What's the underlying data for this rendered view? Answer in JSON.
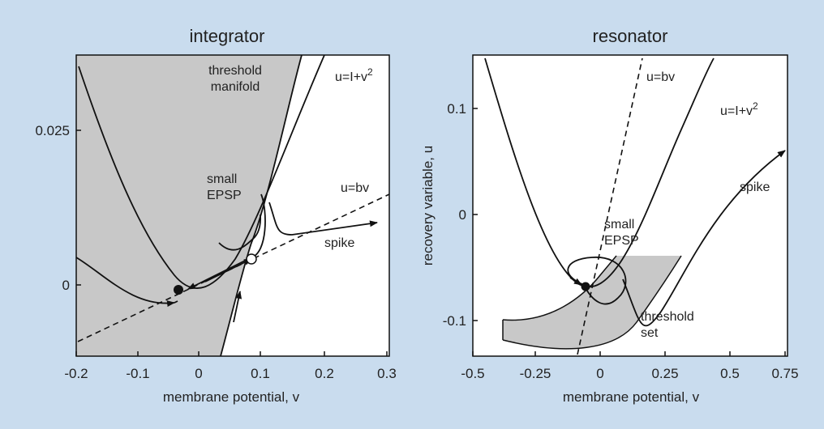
{
  "colors": {
    "background": "#c9dcee",
    "panel": "#ffffff",
    "shade": "#c8c8c8",
    "ink": "#111111"
  },
  "left_panel": {
    "title": "integrator",
    "xlabel": "membrane potential, v",
    "x_ticks": [
      "-0.2",
      "-0.1",
      "0",
      "0.1",
      "0.2",
      "0.3"
    ],
    "y_ticks": [
      "0.025",
      "0"
    ],
    "annotations": {
      "threshold_manifold_line1": "threshold",
      "threshold_manifold_line2": "manifold",
      "parabola": "u=I+v",
      "parabola_exp": "2",
      "small_epsp_line1": "small",
      "small_epsp_line2": "EPSP",
      "line": "u=bv",
      "spike": "spike"
    }
  },
  "right_panel": {
    "title": "resonator",
    "xlabel": "membrane potential, v",
    "ylabel": "recovery variable, u",
    "x_ticks": [
      "-0.5",
      "-0.25",
      "0",
      "0.25",
      "0.5",
      "0.75"
    ],
    "y_ticks": [
      "0.1",
      "0",
      "-0.1"
    ],
    "annotations": {
      "line": "u=bv",
      "parabola": "u=I+v",
      "parabola_exp": "2",
      "spike": "spike",
      "small_epsp_line1": "small",
      "small_epsp_line2": "EPSP",
      "threshold_set_line1": "threshold",
      "threshold_set_line2": "set"
    }
  }
}
